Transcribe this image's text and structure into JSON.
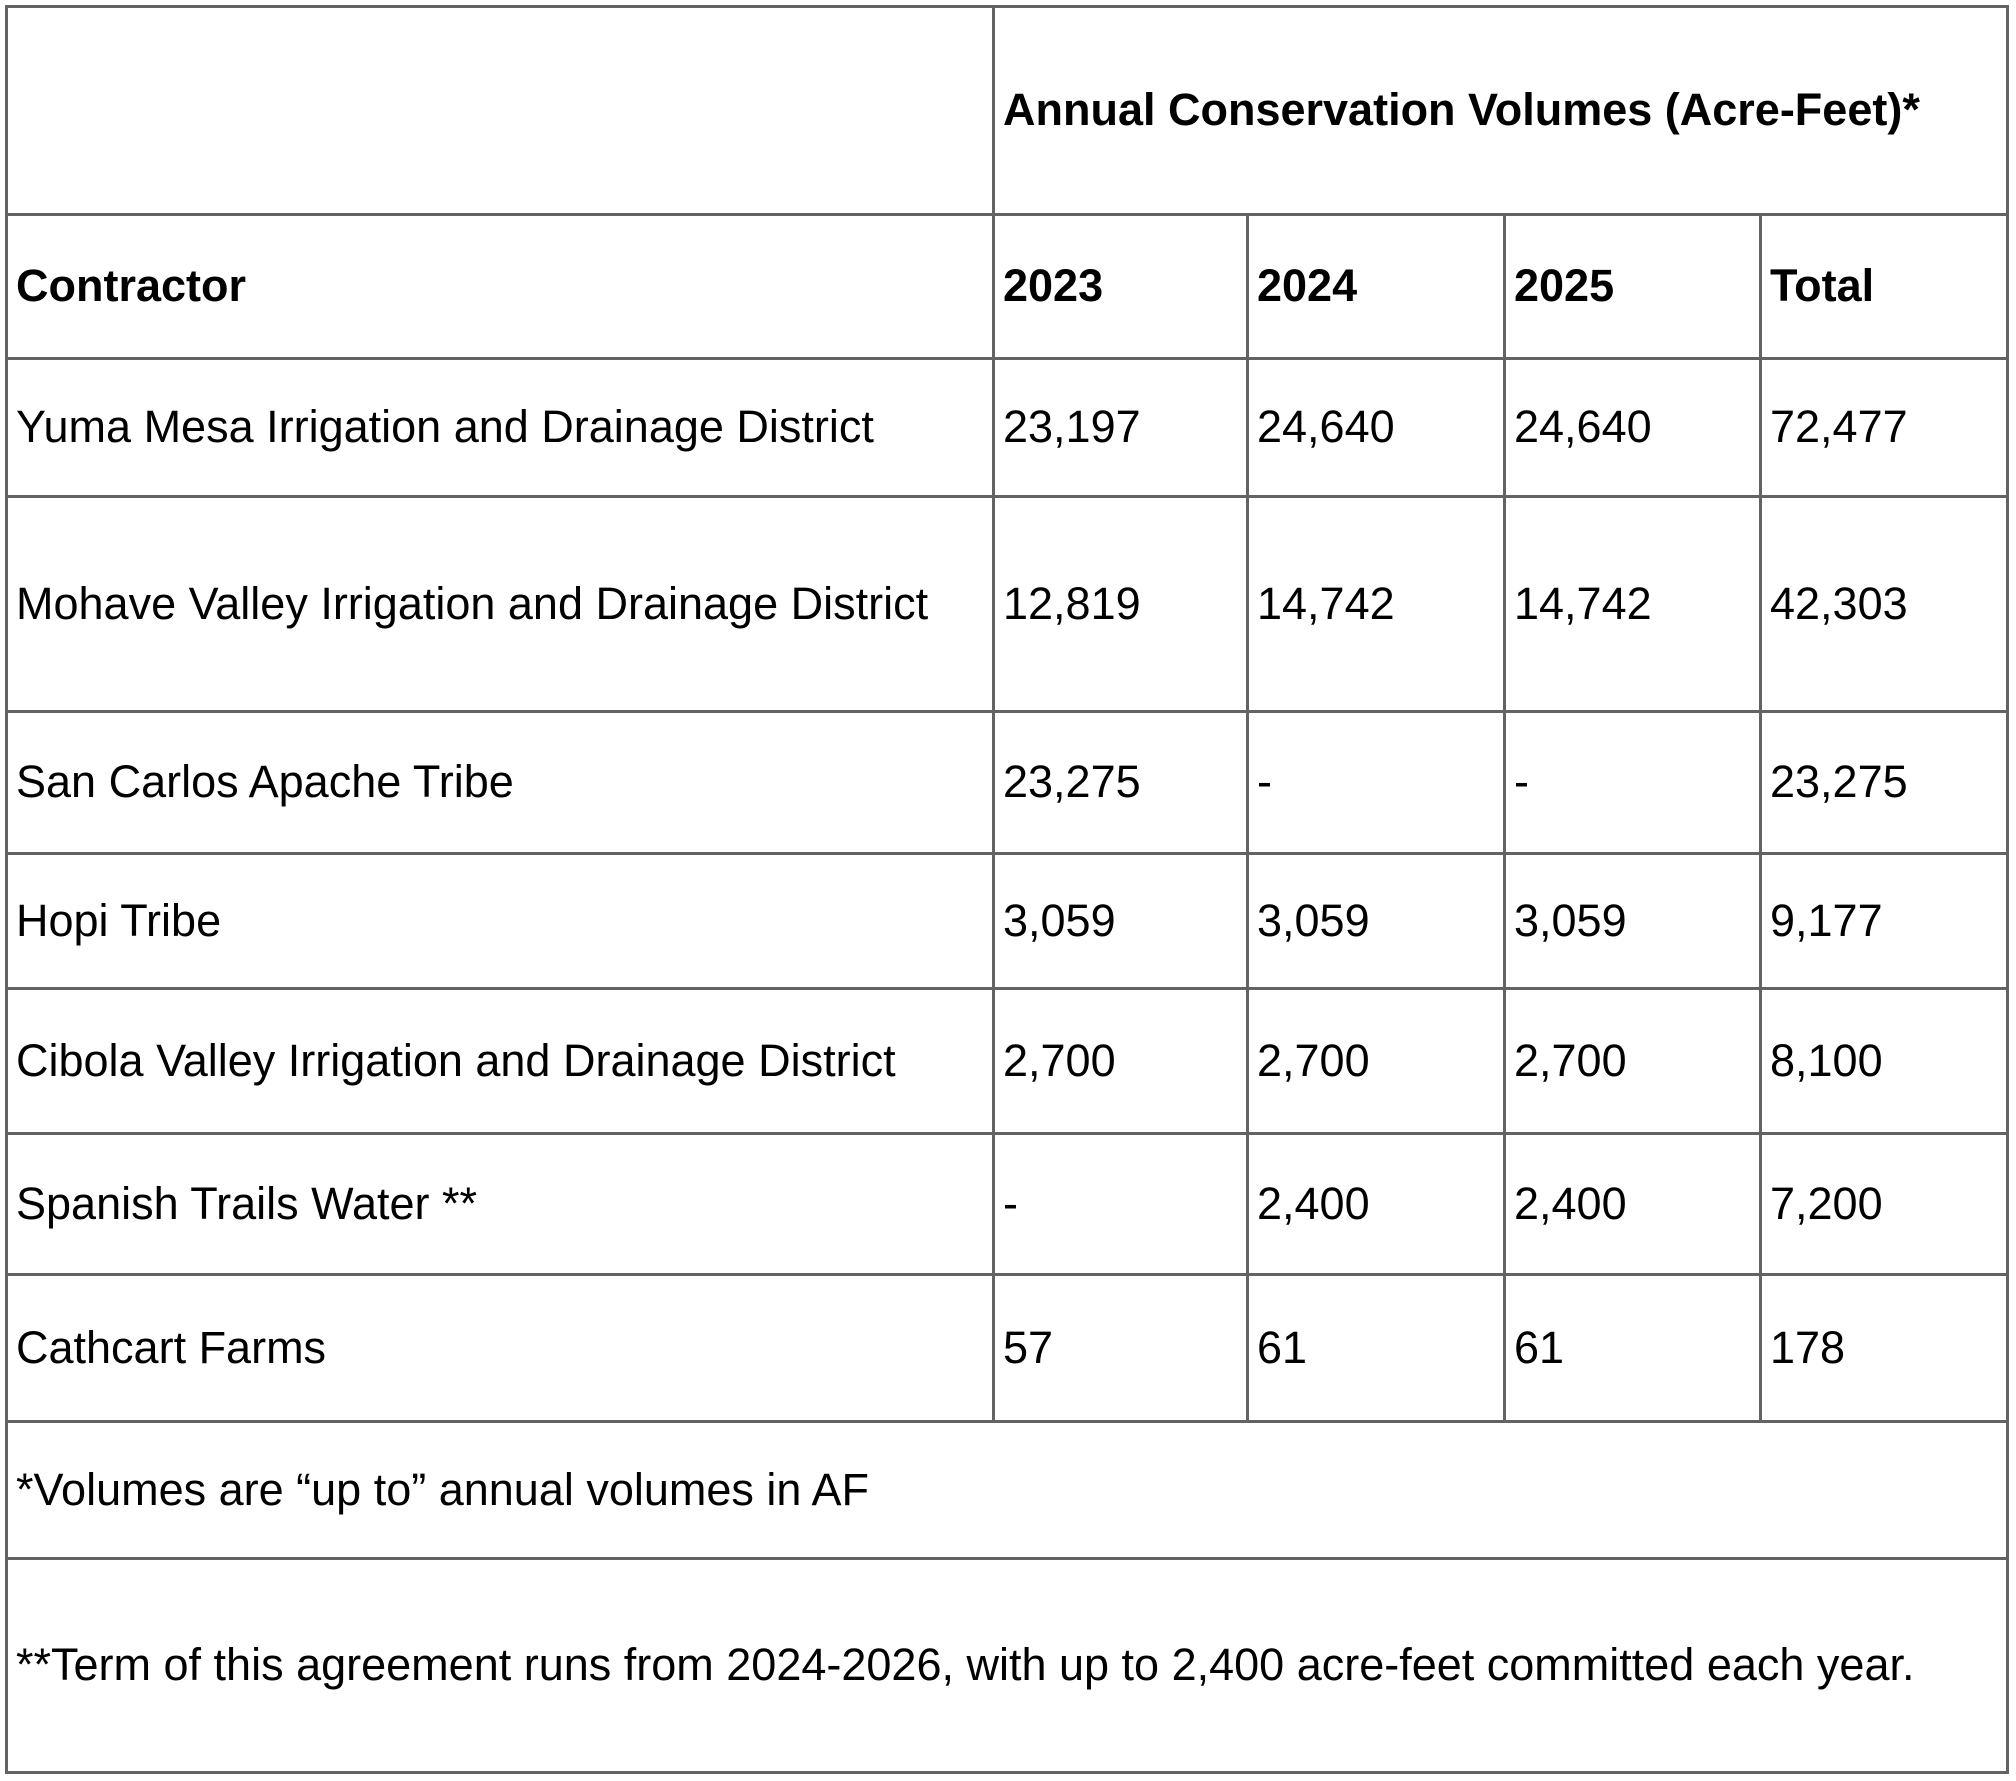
{
  "table": {
    "header_group_label": "Annual Conservation Volumes (Acre-Feet)*",
    "columns": {
      "contractor": "Contractor",
      "y2023": "2023",
      "y2024": "2024",
      "y2025": "2025",
      "total": "Total"
    },
    "rows": [
      {
        "contractor": "Yuma Mesa Irrigation and Drainage District",
        "y2023": "23,197",
        "y2024": "24,640",
        "y2025": "24,640",
        "total": "72,477"
      },
      {
        "contractor": "Mohave Valley Irrigation and Drainage District",
        "y2023": "12,819",
        "y2024": "14,742",
        "y2025": "14,742",
        "total": "42,303"
      },
      {
        "contractor": "San Carlos Apache Tribe",
        "y2023": "23,275",
        "y2024": "-",
        "y2025": "-",
        "total": "23,275"
      },
      {
        "contractor": "Hopi Tribe",
        "y2023": "3,059",
        "y2024": "3,059",
        "y2025": "3,059",
        "total": "9,177"
      },
      {
        "contractor": "Cibola Valley Irrigation and Drainage District",
        "y2023": "2,700",
        "y2024": "2,700",
        "y2025": "2,700",
        "total": "8,100"
      },
      {
        "contractor": "Spanish Trails Water **",
        "y2023": "-",
        "y2024": "2,400",
        "y2025": "2,400",
        "total": "7,200"
      },
      {
        "contractor": "Cathcart Farms",
        "y2023": "57",
        "y2024": "61",
        "y2025": "61",
        "total": "178"
      }
    ],
    "footnotes": [
      "*Volumes are “up to” annual volumes in AF",
      "**Term of this agreement runs from 2024-2026, with up to 2,400 acre-feet committed each year."
    ],
    "border_color": "#636363",
    "text_color": "#000000"
  }
}
